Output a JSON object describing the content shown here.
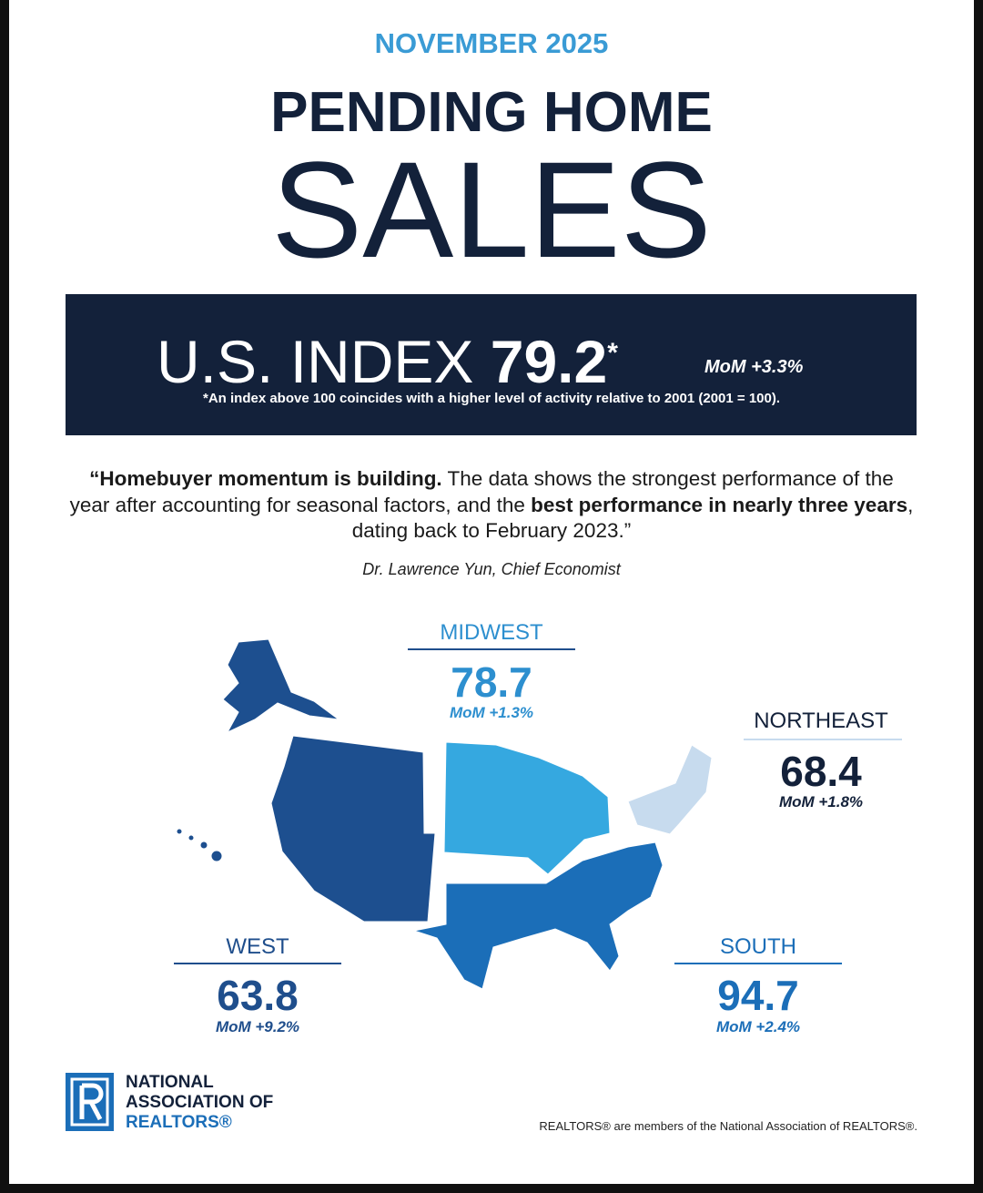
{
  "header": {
    "date": "NOVEMBER 2025",
    "title_line1": "PENDING HOME",
    "title_line2": "SALES"
  },
  "index": {
    "label": "U.S. INDEX",
    "value": 79.2,
    "asterisk": "*",
    "mom": "MoM +3.3%",
    "note": "*An index above 100 coincides with a higher level of activity relative to 2001 (2001 = 100)."
  },
  "quote": {
    "segments": [
      {
        "text": "“Homebuyer momentum is building.",
        "bold": true
      },
      {
        "text": " The data shows the strongest performance of the year after accounting for seasonal factors, and the ",
        "bold": false
      },
      {
        "text": "best performance in nearly three years",
        "bold": true
      },
      {
        "text": ", dating back to February 2023.”",
        "bold": false
      }
    ],
    "attribution": "Dr. Lawrence Yun, Chief Economist"
  },
  "regions": [
    {
      "name": "MIDWEST",
      "value": 78.7,
      "mom": "MoM +1.3%"
    },
    {
      "name": "NORTHEAST",
      "value": 68.4,
      "mom": "MoM +1.8%"
    },
    {
      "name": "WEST",
      "value": 63.8,
      "mom": "MoM +9.2%"
    },
    {
      "name": "SOUTH",
      "value": 94.7,
      "mom": "MoM +2.4%"
    }
  ],
  "footer": {
    "logo_line1": "NATIONAL",
    "logo_line2": "ASSOCIATION OF",
    "logo_line3": "REALTORS®",
    "disclaimer": "REALTORS® are members of the National Association of REALTORS®."
  }
}
